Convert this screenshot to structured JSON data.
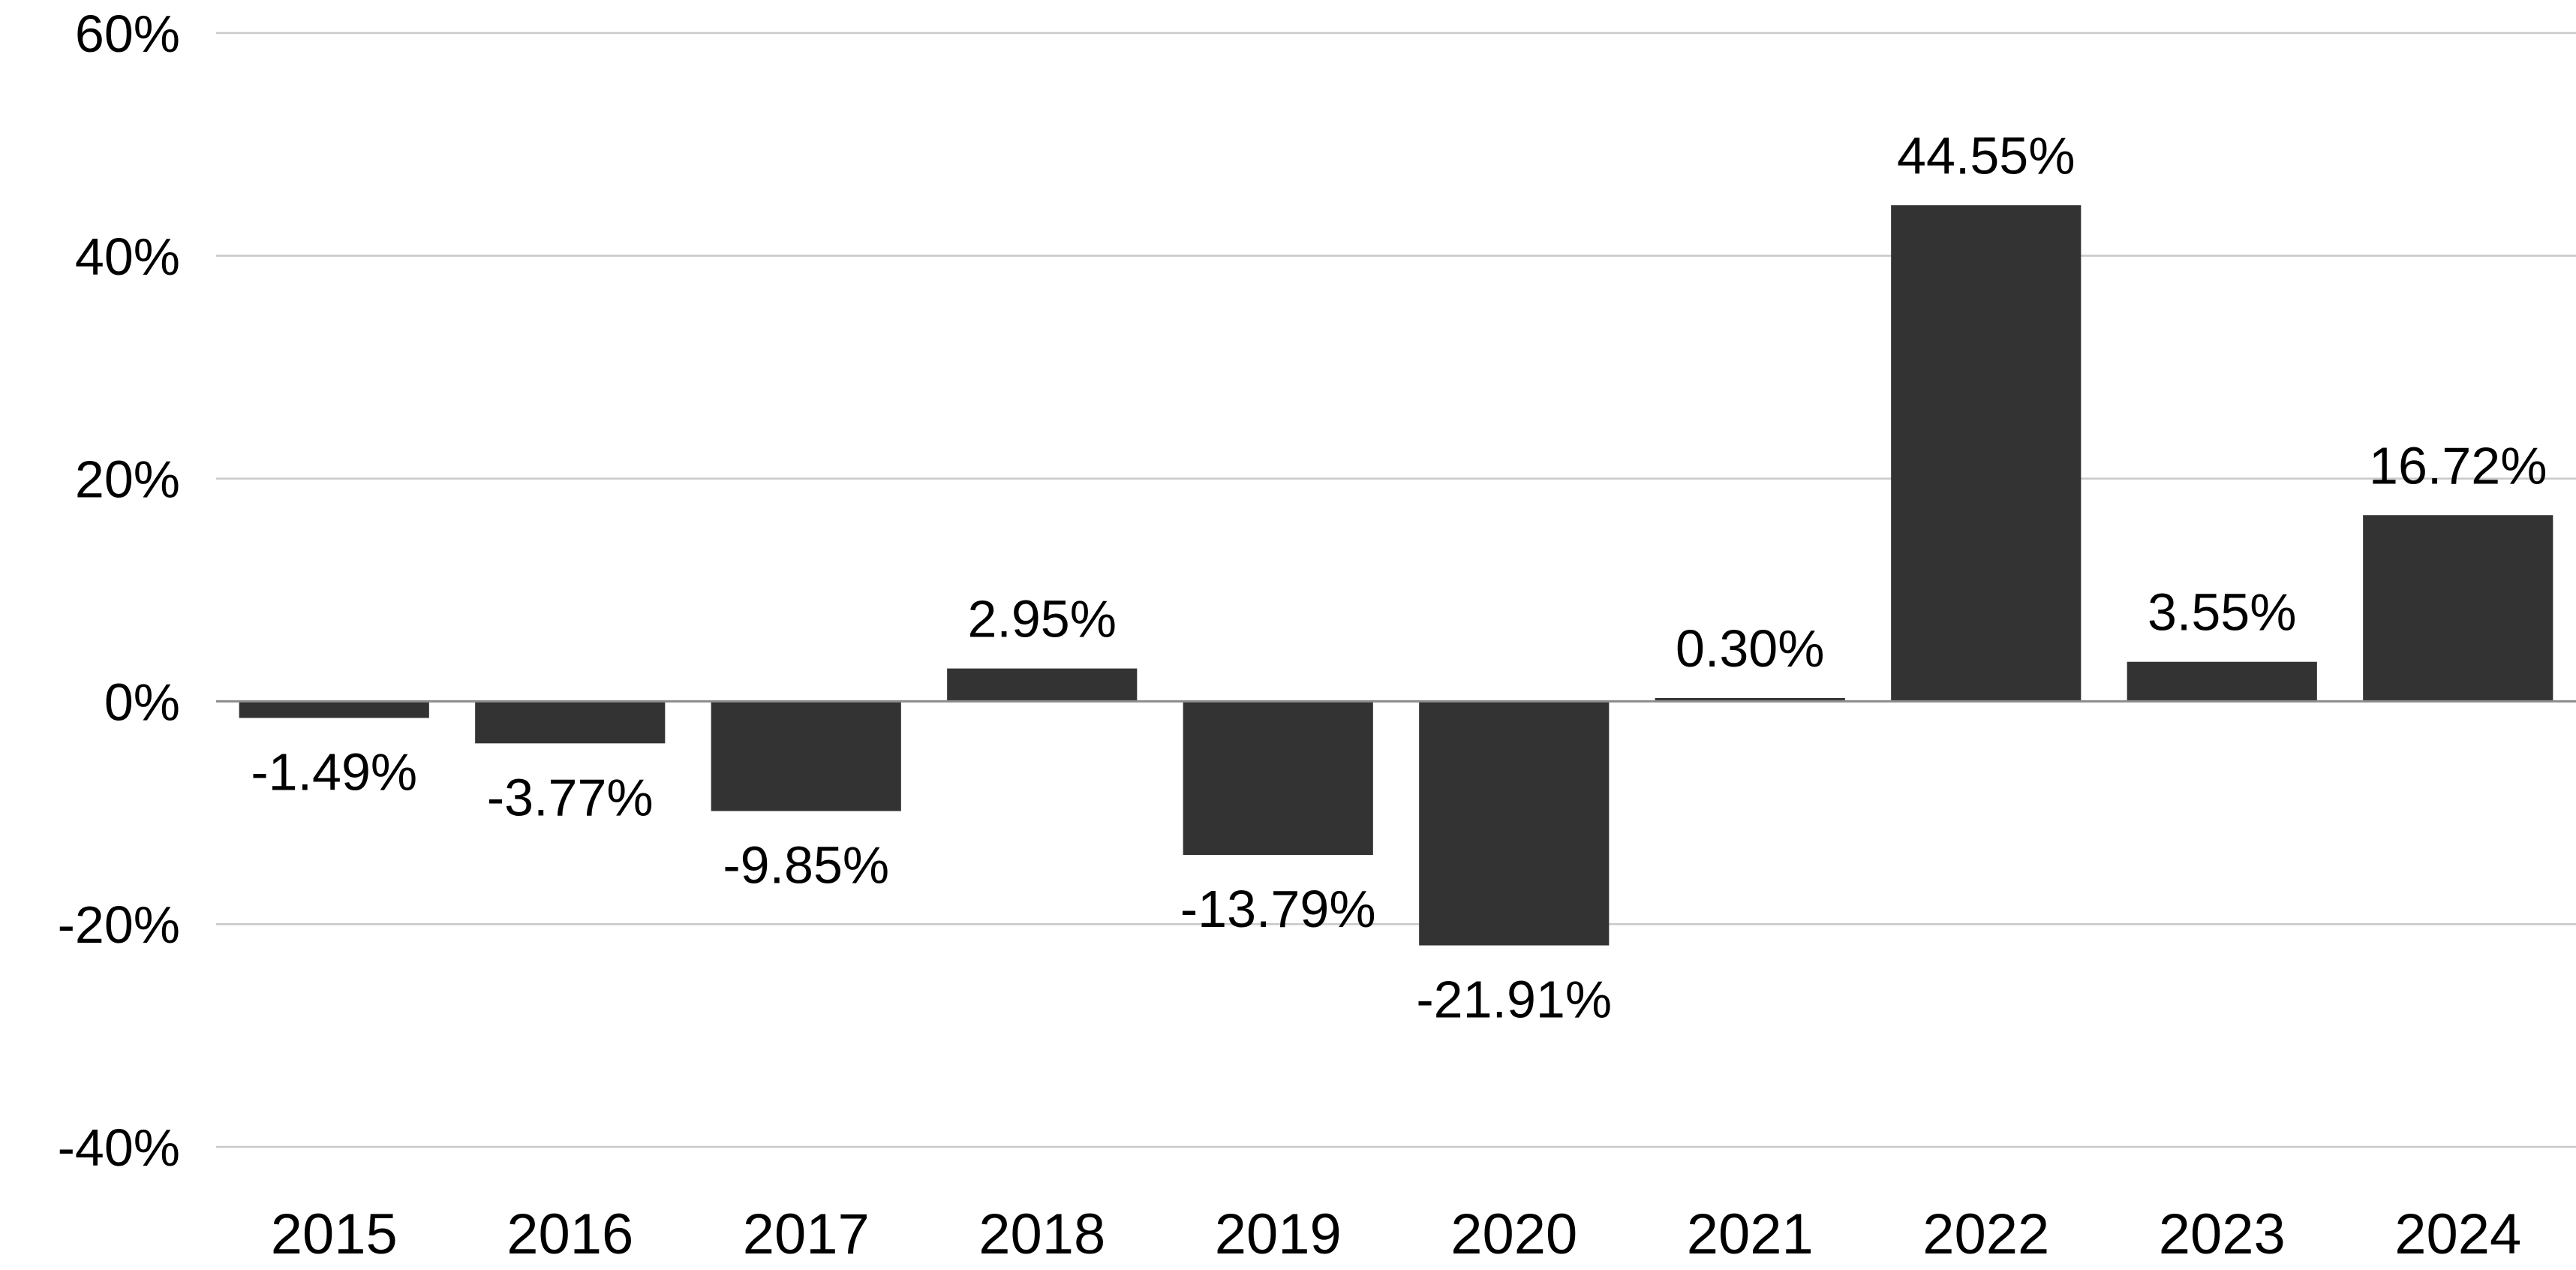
{
  "chart_data": {
    "type": "bar",
    "title": "",
    "xlabel": "",
    "ylabel": "",
    "categories": [
      "2015",
      "2016",
      "2017",
      "2018",
      "2019",
      "2020",
      "2021",
      "2022",
      "2023",
      "2024"
    ],
    "values": [
      -1.49,
      -3.77,
      -9.85,
      2.95,
      -13.79,
      -21.91,
      0.3,
      44.55,
      3.55,
      16.72
    ],
    "data_labels": [
      "-1.49%",
      "-3.77%",
      "-9.85%",
      "2.95%",
      "-13.79%",
      "-21.91%",
      "0.30%",
      "44.55%",
      "3.55%",
      "16.72%"
    ],
    "ylim": [
      -40,
      60
    ],
    "yticks": [
      60,
      40,
      20,
      0,
      -20,
      -40
    ],
    "ytick_labels": [
      "60%",
      "40%",
      "20%",
      "0%",
      "-20%",
      "-40%"
    ],
    "grid": true,
    "legend": "none",
    "bar_color": "#333333"
  }
}
